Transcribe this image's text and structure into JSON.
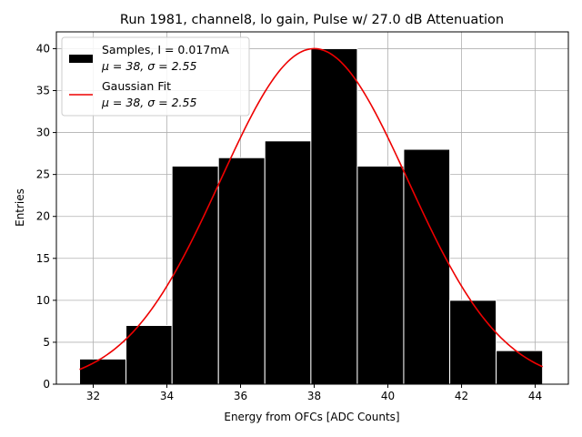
{
  "chart_data": {
    "type": "bar",
    "title": "Run 1981, channel8, lo gain, Pulse w/ 27.0 dB Attenuation",
    "xlabel": "Energy from OFCs [ADC Counts]",
    "ylabel": "Entries",
    "xlim": [
      31.0,
      44.9
    ],
    "ylim": [
      0,
      42
    ],
    "xticks": [
      32,
      34,
      36,
      38,
      40,
      42,
      44
    ],
    "yticks": [
      0,
      5,
      10,
      15,
      20,
      25,
      30,
      35,
      40
    ],
    "bin_edges": [
      31.63,
      32.89,
      34.14,
      35.4,
      36.66,
      37.91,
      39.17,
      40.43,
      41.68,
      42.94,
      44.2
    ],
    "values": [
      3,
      7,
      26,
      27,
      29,
      40,
      26,
      28,
      10,
      4
    ],
    "fit": {
      "mu": 38,
      "sigma": 2.55,
      "amplitude": 40,
      "x_range": [
        31.63,
        44.2
      ]
    },
    "grid": true,
    "legend_position": "top-left",
    "legend": [
      {
        "name": "Samples, I = 0.017mA",
        "stats": "μ = 38, σ = 2.55",
        "color": "#000000",
        "kind": "patch"
      },
      {
        "name": "Gaussian Fit",
        "stats": "μ = 38, σ = 2.55",
        "color": "#ee0000",
        "kind": "line"
      }
    ]
  }
}
